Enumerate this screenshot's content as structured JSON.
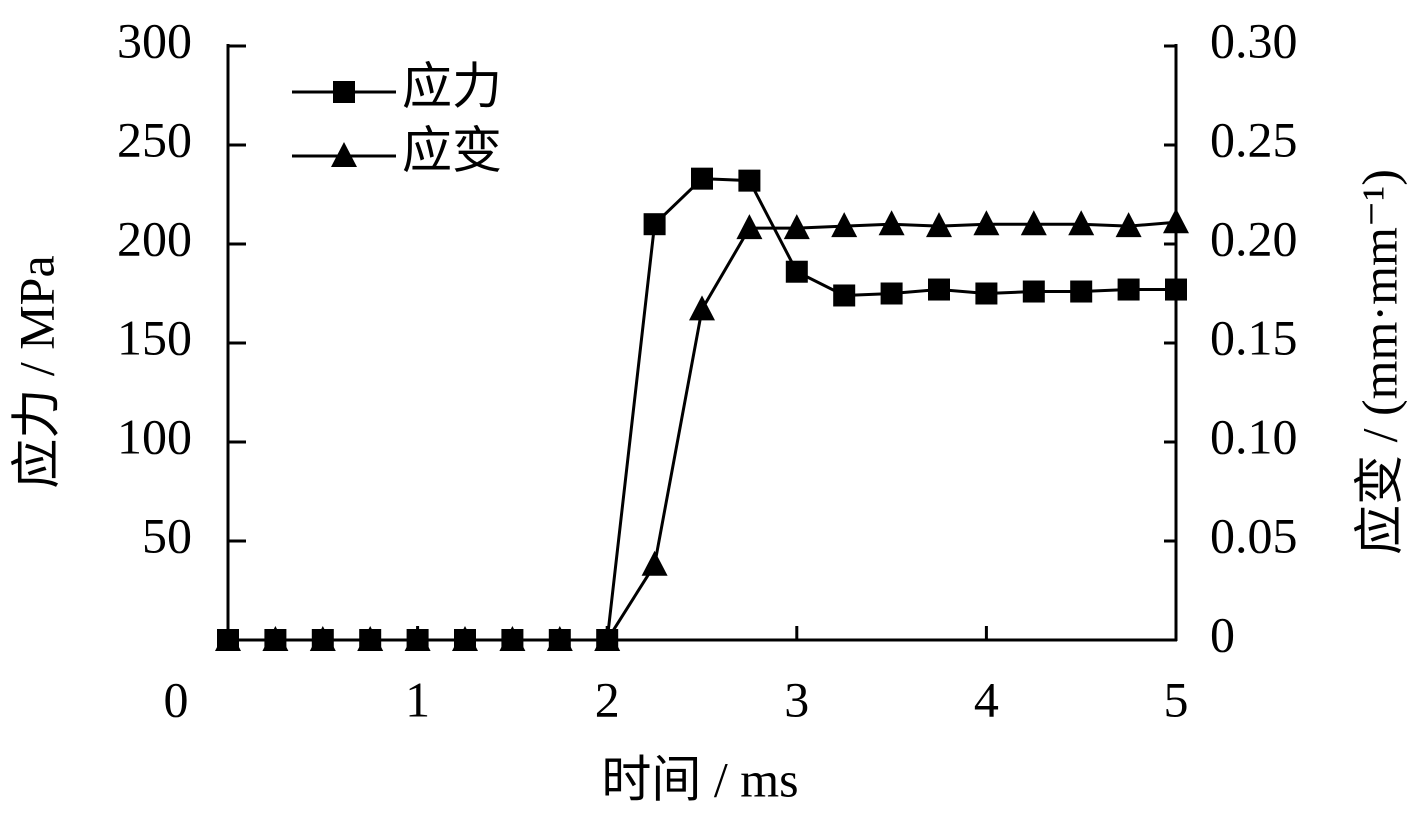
{
  "chart_data": {
    "type": "line",
    "xlabel": "时间 / ms",
    "ylabel": "应力 / MPa",
    "y2label": "应变 / (mm·mm⁻¹)",
    "x": [
      0,
      0.25,
      0.5,
      0.75,
      1,
      1.25,
      1.5,
      1.75,
      2,
      2.25,
      2.5,
      2.75,
      3,
      3.25,
      3.5,
      3.75,
      4,
      4.25,
      4.5,
      4.75,
      5
    ],
    "series": [
      {
        "name": "应力",
        "color": "#000000",
        "marker": "square",
        "values": [
          0,
          0,
          0,
          0,
          0,
          0,
          0,
          0,
          0,
          210,
          233,
          232,
          186,
          174,
          175,
          177,
          175,
          176,
          176,
          177,
          177
        ]
      },
      {
        "name": "应变",
        "color": "#000000",
        "marker": "triangle",
        "axis": "y2",
        "values": [
          0,
          0,
          0,
          0,
          0,
          0,
          0,
          0,
          0,
          0.038,
          0.167,
          0.208,
          0.208,
          0.209,
          0.21,
          0.209,
          0.21,
          0.21,
          0.21,
          0.209,
          0.211
        ]
      }
    ],
    "xlim": [
      0,
      5
    ],
    "xticks": [
      0,
      1,
      2,
      3,
      4,
      5
    ],
    "ylim": [
      0,
      300
    ],
    "yticks": [
      50,
      100,
      150,
      200,
      250,
      300
    ],
    "y2lim": [
      0,
      0.3
    ],
    "y2ticks": [
      0,
      0.05,
      {
        "value": 0.1,
        "label": "0.10"
      },
      0.15,
      {
        "value": 0.2,
        "label": "0.20"
      },
      0.25,
      {
        "value": 0.3,
        "label": "0.30"
      }
    ],
    "grid": false,
    "legend": "upper left"
  }
}
